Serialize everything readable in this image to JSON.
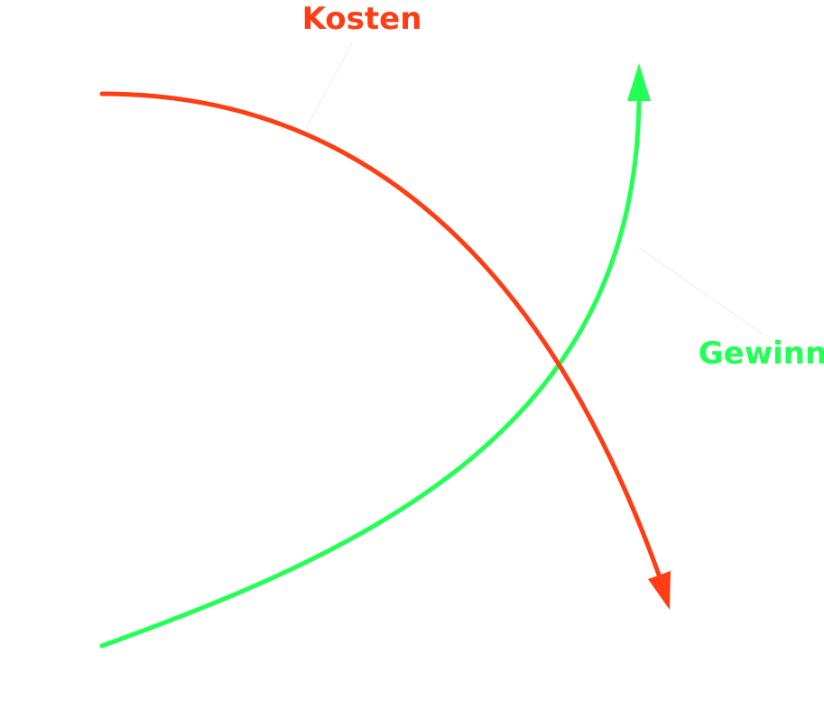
{
  "labels": {
    "costs": "Kosten",
    "profit": "Gewinn"
  },
  "colors": {
    "costs": "#ff3d14",
    "profit": "#22ff55",
    "leader": "#f0f0f0",
    "background": "#ffffff"
  }
}
